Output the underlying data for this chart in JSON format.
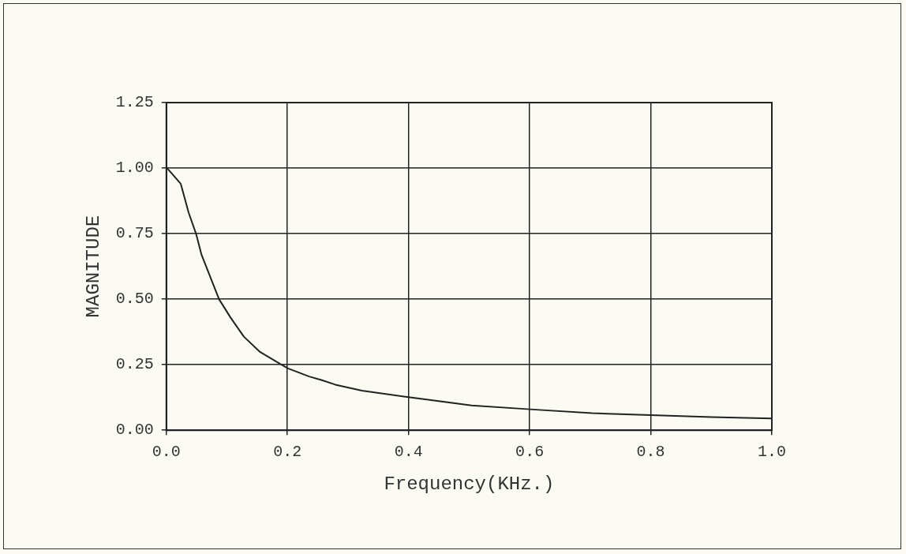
{
  "chart_data": {
    "type": "line",
    "xlabel": "Frequency(KHz.)",
    "ylabel": "MAGNITUDE",
    "x": [
      0.0,
      0.0013,
      0.0238,
      0.0368,
      0.049,
      0.058,
      0.087,
      0.106,
      0.128,
      0.154,
      0.188,
      0.201,
      0.236,
      0.257,
      0.279,
      0.323,
      0.4,
      0.504,
      0.6,
      0.703,
      0.8,
      0.9,
      1.0
    ],
    "series": [
      {
        "color": "#222222",
        "values": [
          1.0,
          1.0,
          0.94,
          0.83,
          0.75,
          0.67,
          0.5,
          0.43,
          0.357,
          0.3,
          0.253,
          0.236,
          0.205,
          0.191,
          0.174,
          0.151,
          0.126,
          0.095,
          0.08,
          0.065,
          0.058,
          0.05,
          0.045
        ]
      }
    ],
    "xlim": [
      0.0,
      1.0
    ],
    "xticks": [
      {
        "value": 0,
        "label": "0.0"
      },
      0.2,
      0.4,
      0.6,
      0.8,
      {
        "value": 1,
        "label": "1.0"
      }
    ],
    "ylim": [
      0.0,
      1.25
    ],
    "yticks": [
      {
        "value": 0,
        "label": "0.00"
      },
      0.25,
      {
        "value": 0.5,
        "label": "0.50"
      },
      0.75,
      {
        "value": 1,
        "label": "1.00"
      },
      1.25
    ],
    "grid": true,
    "legend": false,
    "marker": "none",
    "line_style": "solid"
  }
}
